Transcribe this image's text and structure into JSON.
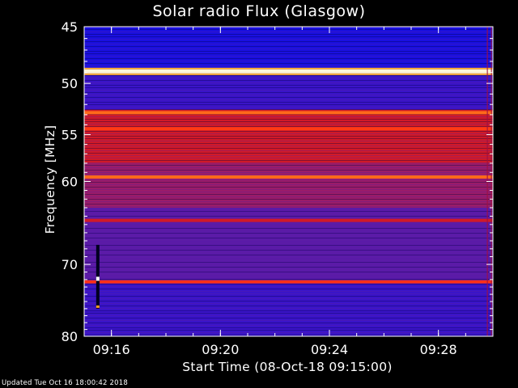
{
  "title": "Solar radio Flux (Glasgow)",
  "footer": "Updated Tue Oct 16 18:00:42 2018",
  "colors": {
    "background": "#000000",
    "text": "#ffffff"
  },
  "chart_data": {
    "type": "heatmap",
    "title": "Solar radio Flux (Glasgow)",
    "xlabel": "Start Time (08-Oct-18 09:15:00)",
    "ylabel": "Frequency [MHz]",
    "ylim": [
      80,
      45
    ],
    "y_scale": "log",
    "x_range_minutes": [
      "09:15",
      "09:30"
    ],
    "y_ticks": [
      "45",
      "50",
      "55",
      "60",
      "70",
      "80"
    ],
    "x_ticks": [
      "09:16",
      "09:20",
      "09:24",
      "09:28"
    ],
    "colormap": "black-blue-red-yellow-white",
    "background_by_frequency": [
      {
        "from_mhz": 45.0,
        "to_mhz": 48.8,
        "level": "blue"
      },
      {
        "from_mhz": 48.8,
        "to_mhz": 52.5,
        "level": "blue-purple"
      },
      {
        "from_mhz": 52.5,
        "to_mhz": 58.0,
        "level": "red"
      },
      {
        "from_mhz": 58.0,
        "to_mhz": 63.0,
        "level": "purple-red"
      },
      {
        "from_mhz": 63.0,
        "to_mhz": 72.0,
        "level": "purple"
      },
      {
        "from_mhz": 72.0,
        "to_mhz": 80.0,
        "level": "blue-purple"
      }
    ],
    "bright_bands_mhz": [
      {
        "freq": 48.9,
        "level": "white"
      },
      {
        "freq": 52.8,
        "level": "orange"
      },
      {
        "freq": 54.4,
        "level": "orange-red"
      },
      {
        "freq": 59.5,
        "level": "orange"
      },
      {
        "freq": 64.5,
        "level": "red"
      },
      {
        "freq": 72.3,
        "level": "red-orange"
      }
    ],
    "features": [
      {
        "kind": "vertical burst streak",
        "time": "09:15:30",
        "from_mhz": 67.5,
        "to_mhz": 76.0
      }
    ]
  }
}
